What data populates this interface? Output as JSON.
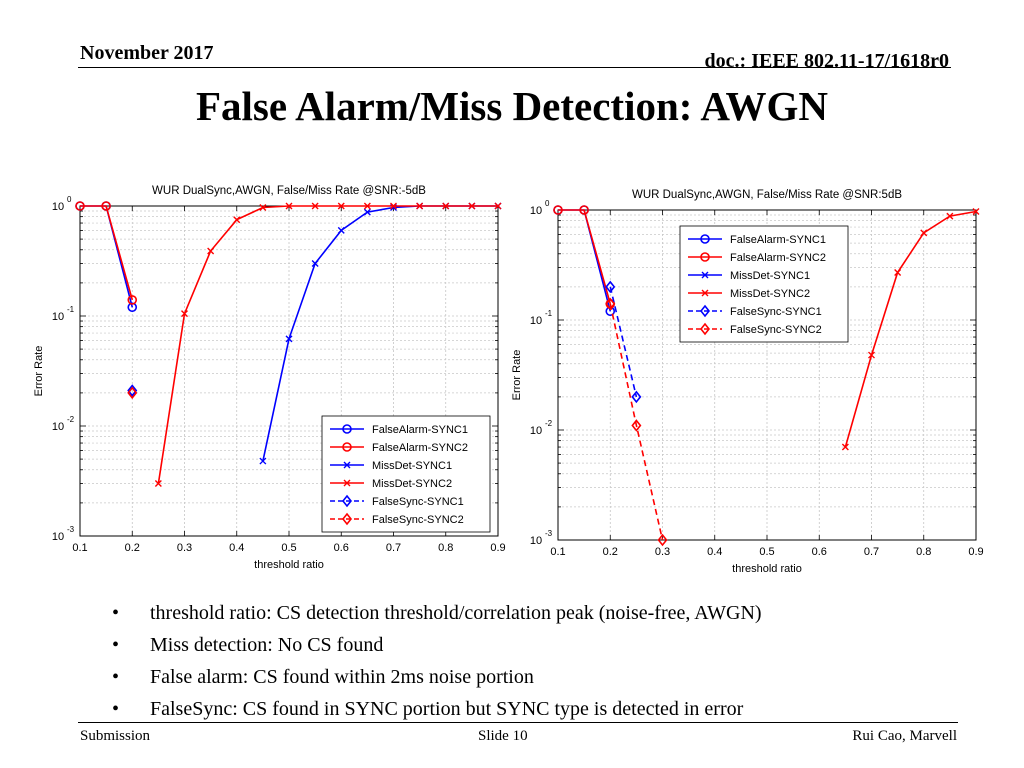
{
  "header": {
    "date": "November 2017",
    "doc": "doc.: IEEE 802.11-17/1618r0"
  },
  "slide_title": "False Alarm/Miss Detection: AWGN",
  "bullets": [
    "threshold ratio: CS detection threshold/correlation peak (noise-free, AWGN)",
    "Miss detection: No CS found",
    "False alarm: CS found within 2ms noise portion",
    "FalseSync: CS found in SYNC portion but SYNC type is detected in error"
  ],
  "bullet_symbol": "•",
  "footer": {
    "left": "Submission",
    "center": "Slide 10",
    "right": "Rui Cao, Marvell"
  },
  "chart_data": [
    {
      "type": "line",
      "title": "WUR DualSync,AWGN, False/Miss Rate @SNR:-5dB",
      "xlabel": "threshold ratio",
      "ylabel": "Error Rate",
      "xlim": [
        0.1,
        0.9
      ],
      "ylim": [
        0.001,
        1
      ],
      "yscale": "log",
      "grid": true,
      "xticks": [
        0.1,
        0.2,
        0.3,
        0.4,
        0.5,
        0.6,
        0.7,
        0.8,
        0.9
      ],
      "xtick_labels": [
        "0.1",
        "0.2",
        "0.3",
        "0.4",
        "0.5",
        "0.6",
        "0.7",
        "0.8",
        "0.9"
      ],
      "ytick_labels": [
        {
          "base": "10",
          "exp": "0"
        },
        {
          "base": "10",
          "exp": "-1"
        },
        {
          "base": "10",
          "exp": "-2"
        },
        {
          "base": "10",
          "exp": "-3"
        }
      ],
      "legend_position": "lower-right",
      "series": [
        {
          "name": "FalseAlarm-SYNC1",
          "color": "#0000ff",
          "marker": "circle",
          "dash": "solid",
          "x": [
            0.1,
            0.15,
            0.2
          ],
          "y": [
            1,
            1,
            0.12
          ]
        },
        {
          "name": "FalseAlarm-SYNC2",
          "color": "#ff0000",
          "marker": "circle",
          "dash": "solid",
          "x": [
            0.1,
            0.15,
            0.2
          ],
          "y": [
            1,
            1,
            0.14
          ]
        },
        {
          "name": "MissDet-SYNC1",
          "color": "#0000ff",
          "marker": "x",
          "dash": "solid",
          "x": [
            0.45,
            0.5,
            0.55,
            0.6,
            0.65,
            0.7,
            0.75,
            0.8,
            0.85,
            0.9
          ],
          "y": [
            0.0048,
            0.062,
            0.3,
            0.6,
            0.88,
            0.97,
            1,
            1,
            1,
            1
          ]
        },
        {
          "name": "MissDet-SYNC2",
          "color": "#ff0000",
          "marker": "x",
          "dash": "solid",
          "x": [
            0.25,
            0.3,
            0.35,
            0.4,
            0.45,
            0.5,
            0.55,
            0.6,
            0.65,
            0.7,
            0.75,
            0.8,
            0.85,
            0.9
          ],
          "y": [
            0.003,
            0.105,
            0.39,
            0.75,
            0.97,
            1,
            1,
            1,
            1,
            1,
            1,
            1,
            1,
            1
          ]
        },
        {
          "name": "FalseSync-SYNC1",
          "color": "#0000ff",
          "marker": "diamond",
          "dash": "dashed",
          "x": [
            0.2
          ],
          "y": [
            0.021
          ]
        },
        {
          "name": "FalseSync-SYNC2",
          "color": "#ff0000",
          "marker": "diamond",
          "dash": "dashed",
          "x": [
            0.2
          ],
          "y": [
            0.02
          ]
        }
      ]
    },
    {
      "type": "line",
      "title": "WUR DualSync,AWGN, False/Miss Rate @SNR:5dB",
      "xlabel": "threshold ratio",
      "ylabel": "Error Rate",
      "xlim": [
        0.1,
        0.9
      ],
      "ylim": [
        0.001,
        1
      ],
      "yscale": "log",
      "grid": true,
      "xticks": [
        0.1,
        0.2,
        0.3,
        0.4,
        0.5,
        0.6,
        0.7,
        0.8,
        0.9
      ],
      "xtick_labels": [
        "0.1",
        "0.2",
        "0.3",
        "0.4",
        "0.5",
        "0.6",
        "0.7",
        "0.8",
        "0.9"
      ],
      "ytick_labels": [
        {
          "base": "10",
          "exp": "0"
        },
        {
          "base": "10",
          "exp": "-1"
        },
        {
          "base": "10",
          "exp": "-2"
        },
        {
          "base": "10",
          "exp": "-3"
        }
      ],
      "legend_position": "upper-right",
      "series": [
        {
          "name": "FalseAlarm-SYNC1",
          "color": "#0000ff",
          "marker": "circle",
          "dash": "solid",
          "x": [
            0.1,
            0.15,
            0.2
          ],
          "y": [
            1,
            1,
            0.12
          ]
        },
        {
          "name": "FalseAlarm-SYNC2",
          "color": "#ff0000",
          "marker": "circle",
          "dash": "solid",
          "x": [
            0.1,
            0.15,
            0.2
          ],
          "y": [
            1,
            1,
            0.14
          ]
        },
        {
          "name": "MissDet-SYNC1",
          "color": "#0000ff",
          "marker": "x",
          "dash": "solid",
          "x": [],
          "y": []
        },
        {
          "name": "MissDet-SYNC2",
          "color": "#ff0000",
          "marker": "x",
          "dash": "solid",
          "x": [
            0.65,
            0.7,
            0.75,
            0.8,
            0.85,
            0.9
          ],
          "y": [
            0.007,
            0.048,
            0.27,
            0.62,
            0.88,
            0.97
          ]
        },
        {
          "name": "FalseSync-SYNC1",
          "color": "#0000ff",
          "marker": "diamond",
          "dash": "dashed",
          "x": [
            0.2,
            0.25
          ],
          "y": [
            0.2,
            0.02
          ]
        },
        {
          "name": "FalseSync-SYNC2",
          "color": "#ff0000",
          "marker": "diamond",
          "dash": "dashed",
          "x": [
            0.2,
            0.25,
            0.3
          ],
          "y": [
            0.14,
            0.011,
            0.001
          ]
        }
      ]
    }
  ]
}
